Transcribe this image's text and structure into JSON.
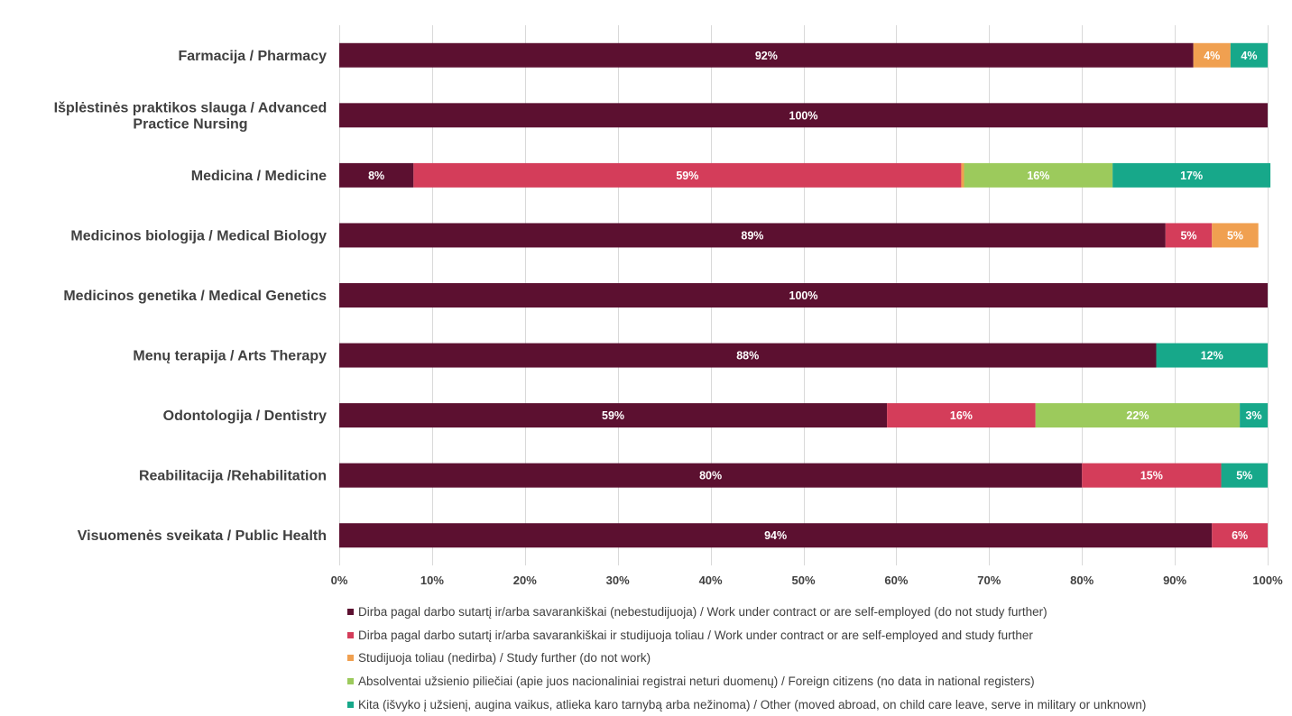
{
  "chart_data": {
    "type": "bar",
    "orientation": "horizontal",
    "stacked": true,
    "categories": [
      [
        "Farmacija / Pharmacy"
      ],
      [
        "Išplėstinės praktikos slauga / Advanced",
        "Practice Nursing"
      ],
      [
        "Medicina / Medicine"
      ],
      [
        "Medicinos biologija / Medical Biology"
      ],
      [
        "Medicinos genetika / Medical Genetics"
      ],
      [
        "Menų terapija / Arts Therapy "
      ],
      [
        "Odontologija / Dentistry"
      ],
      [
        "Reabilitacija /Rehabilitation"
      ],
      [
        "Visuomenės sveikata / Public Health"
      ]
    ],
    "series": [
      {
        "name": "Dirba pagal darbo sutartį ir/arba savarankiškai (nebestudijuoja) / Work under contract or are self-employed (do not study further)",
        "color": "#5c1030",
        "values": [
          92,
          100,
          8,
          89,
          100,
          88,
          59,
          80,
          94
        ]
      },
      {
        "name": "Dirba pagal darbo sutartį ir/arba savarankiškai  ir studijuoja toliau / Work under contract or are self-employed and study further",
        "color": "#d43d5a",
        "values": [
          0,
          0,
          59,
          5,
          0,
          0,
          16,
          15,
          6
        ]
      },
      {
        "name": "Studijuoja toliau (nedirba) / Study further (do not work)",
        "color": "#f0a050",
        "values": [
          4,
          0,
          0.3,
          5,
          0,
          0,
          0,
          0,
          0
        ]
      },
      {
        "name": "Absolventai užsienio piliečiai (apie juos nacionaliniai registrai neturi duomenų) / Foreign citizens (no data in national registers)",
        "color": "#9cca5c",
        "values": [
          0,
          0,
          16,
          0,
          0,
          0,
          22,
          0,
          0
        ]
      },
      {
        "name": "Kita (išvyko į užsienį, augina vaikus, atlieka karo tarnybą arba nežinoma) / Other (moved abroad, on child care leave, serve in military or unknown)",
        "color": "#17a88a",
        "values": [
          4,
          0,
          17,
          0,
          0,
          12,
          3,
          5,
          0
        ]
      }
    ],
    "data_labels": [
      [
        "92%",
        "",
        "4%",
        "",
        "4%"
      ],
      [
        "100%",
        "",
        "",
        "",
        ""
      ],
      [
        "8%",
        "59%",
        "",
        "16%",
        "17%"
      ],
      [
        "89%",
        "5%",
        "5%",
        "",
        ""
      ],
      [
        "100%",
        "",
        "",
        "",
        ""
      ],
      [
        "88%",
        "",
        "",
        "",
        "12%"
      ],
      [
        "59%",
        "16%",
        "",
        "22%",
        "3%"
      ],
      [
        "80%",
        "15%",
        "",
        "",
        "5%"
      ],
      [
        "94%",
        "6%",
        "",
        "",
        ""
      ]
    ],
    "xticks": [
      "0%",
      "10%",
      "20%",
      "30%",
      "40%",
      "50%",
      "60%",
      "70%",
      "80%",
      "90%",
      "100%"
    ],
    "xlim": [
      0,
      100
    ],
    "grid": true,
    "legend_position": "bottom",
    "gridline_color": "#d9d9d9"
  }
}
